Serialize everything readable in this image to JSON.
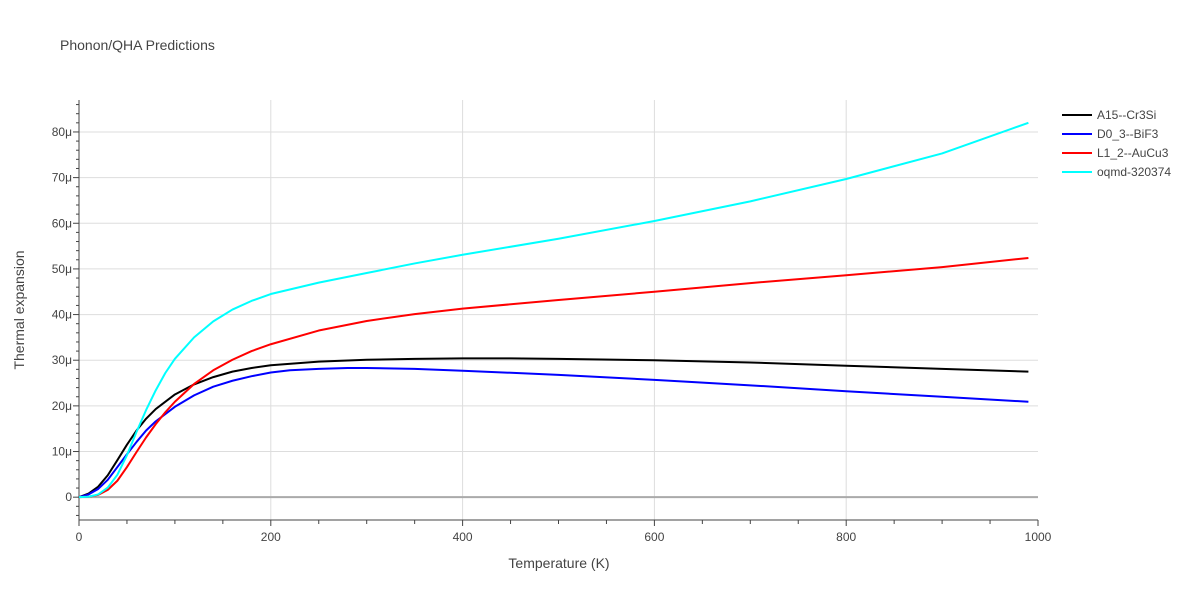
{
  "chart_data": {
    "type": "line",
    "title": "Phonon/QHA Predictions",
    "xlabel": "Temperature (K)",
    "ylabel": "Thermal expansion",
    "xlim": [
      0,
      1000
    ],
    "ylim": [
      -5,
      87
    ],
    "x_ticks": [
      0,
      200,
      400,
      600,
      800,
      1000
    ],
    "y_ticks": [
      0,
      10,
      20,
      30,
      40,
      50,
      60,
      70,
      80
    ],
    "y_tick_labels": [
      "0",
      "10μ",
      "20μ",
      "30μ",
      "40μ",
      "50μ",
      "60μ",
      "70μ",
      "80μ"
    ],
    "grid": true,
    "legend_position": "top-right",
    "series": [
      {
        "name": "A15--Cr3Si",
        "color": "#000000",
        "x": [
          0,
          10,
          20,
          30,
          40,
          50,
          60,
          70,
          80,
          100,
          120,
          140,
          160,
          180,
          200,
          250,
          300,
          350,
          400,
          450,
          500,
          600,
          700,
          800,
          900,
          990
        ],
        "y": [
          0,
          0.8,
          2.3,
          4.8,
          8.1,
          11.5,
          14.6,
          17.2,
          19.3,
          22.5,
          24.7,
          26.3,
          27.5,
          28.3,
          28.9,
          29.7,
          30.1,
          30.3,
          30.4,
          30.4,
          30.3,
          30.0,
          29.5,
          28.8,
          28.1,
          27.5
        ]
      },
      {
        "name": "D0_3--BiF3",
        "color": "#0000ff",
        "x": [
          0,
          10,
          20,
          30,
          40,
          50,
          60,
          70,
          80,
          100,
          120,
          140,
          160,
          180,
          200,
          220,
          250,
          280,
          300,
          350,
          400,
          500,
          600,
          700,
          800,
          900,
          990
        ],
        "y": [
          0,
          0.6,
          1.8,
          3.8,
          6.6,
          9.4,
          12.1,
          14.6,
          16.6,
          19.8,
          22.3,
          24.2,
          25.5,
          26.5,
          27.3,
          27.8,
          28.1,
          28.3,
          28.3,
          28.1,
          27.7,
          26.8,
          25.7,
          24.5,
          23.2,
          22.0,
          20.9
        ]
      },
      {
        "name": "L1_2--AuCu3",
        "color": "#ff0000",
        "x": [
          0,
          10,
          20,
          30,
          40,
          50,
          60,
          70,
          80,
          90,
          100,
          120,
          140,
          160,
          180,
          200,
          250,
          300,
          350,
          400,
          500,
          600,
          700,
          800,
          900,
          990
        ],
        "y": [
          0,
          0.1,
          0.5,
          1.6,
          3.6,
          6.6,
          9.9,
          13.1,
          16.0,
          18.6,
          20.9,
          24.8,
          27.8,
          30.1,
          32.0,
          33.5,
          36.5,
          38.6,
          40.1,
          41.3,
          43.2,
          45.0,
          46.9,
          48.6,
          50.4,
          52.4
        ]
      },
      {
        "name": "oqmd-320374",
        "color": "#00ffff",
        "x": [
          0,
          10,
          20,
          30,
          40,
          50,
          60,
          70,
          80,
          90,
          100,
          120,
          140,
          160,
          180,
          200,
          250,
          300,
          350,
          400,
          500,
          600,
          700,
          800,
          900,
          990
        ],
        "y": [
          0,
          0.1,
          0.6,
          2.1,
          4.9,
          9.2,
          14.3,
          19.1,
          23.4,
          27.2,
          30.3,
          35.0,
          38.5,
          41.1,
          43.0,
          44.5,
          47.0,
          49.1,
          51.2,
          53.1,
          56.6,
          60.5,
          64.8,
          69.7,
          75.3,
          82.0
        ]
      }
    ]
  }
}
